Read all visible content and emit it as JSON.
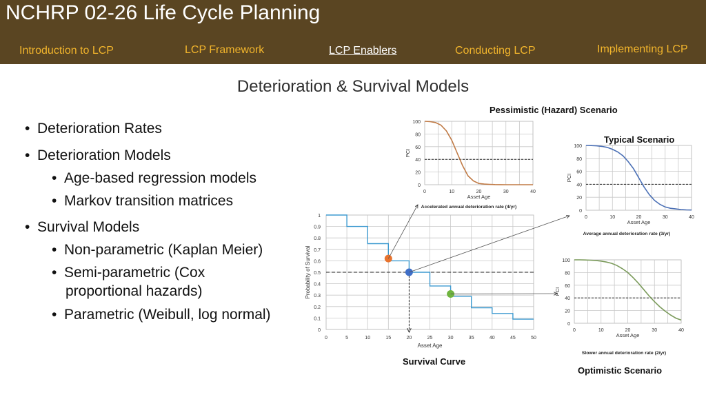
{
  "header": {
    "title": "NCHRP 02-26 Life Cycle Planning",
    "nav": [
      "Introduction to LCP",
      "LCP  Framework",
      "LCP Enablers",
      "Conducting LCP",
      "Implementing LCP"
    ],
    "active_index": 2
  },
  "slide": {
    "title": "Deterioration & Survival Models",
    "bullets": [
      "Deterioration Rates",
      "Deterioration Models",
      "Age-based regression models",
      "Markov transition matrices",
      "Survival Models",
      "Non-parametric (Kaplan Meier)",
      "Semi-parametric (Cox",
      "proportional hazards)",
      "Parametric (Weibull, log normal)"
    ]
  },
  "colors": {
    "header_bg": "#5a4522",
    "nav_text": "#f2b52c",
    "pessimistic_curve": "#c07a45",
    "typical_curve": "#4a6fb5",
    "optimistic_curve": "#7a9a5a",
    "survival_line": "#3d9ad0",
    "point_orange": "#e8732e",
    "point_blue": "#3f6fc8",
    "point_green": "#6fb43f"
  },
  "chart_data": [
    {
      "type": "line",
      "title": "Survival Curve",
      "xlabel": "Asset Age",
      "ylabel": "Probability of Survival",
      "xlim": [
        0,
        50
      ],
      "ylim": [
        0,
        1
      ],
      "x_ticks": [
        0,
        5,
        10,
        15,
        20,
        25,
        30,
        35,
        40,
        45,
        50
      ],
      "y_ticks": [
        0,
        0.1,
        0.2,
        0.3,
        0.4,
        0.5,
        0.6,
        0.7,
        0.8,
        0.9,
        1
      ],
      "x_tick_labels": [
        "0",
        "5",
        "10",
        "15",
        "20",
        "25",
        "30",
        "35",
        "40",
        "45",
        "50"
      ],
      "y_tick_labels": [
        "0",
        "0.1",
        "0.2",
        "0.3",
        "0.4",
        "0.5",
        "0.6",
        "0.7",
        "0.8",
        "0.9",
        "1"
      ],
      "step_x": [
        0,
        5,
        10,
        15,
        20,
        25,
        30,
        35,
        40,
        45,
        50
      ],
      "step_y": [
        1,
        0.9,
        0.75,
        0.6,
        0.5,
        0.38,
        0.29,
        0.19,
        0.14,
        0.09,
        0.09
      ],
      "points": [
        {
          "x": 15,
          "y": 0.62,
          "color": "orange"
        },
        {
          "x": 20,
          "y": 0.5,
          "color": "blue"
        },
        {
          "x": 30,
          "y": 0.31,
          "color": "green"
        }
      ],
      "reference_line_y": 0.5,
      "reference_line_x": 20,
      "grid": true
    },
    {
      "type": "line",
      "title": "Pessimistic (Hazard) Scenario",
      "caption": "Accelerated annual deterioration rate (4/yr)",
      "xlabel": "Asset Age",
      "ylabel": "PCI",
      "xlim": [
        0,
        40
      ],
      "ylim": [
        0,
        100
      ],
      "x_ticks": [
        0,
        10,
        20,
        30,
        40
      ],
      "y_ticks": [
        0,
        20,
        40,
        60,
        80,
        100
      ],
      "x": [
        0,
        2,
        4,
        6,
        8,
        10,
        12,
        14,
        16,
        18,
        20,
        22,
        24,
        26,
        28,
        30,
        32,
        34,
        36,
        38,
        40
      ],
      "y": [
        100,
        99.5,
        98,
        94,
        85,
        70,
        50,
        30,
        14,
        6,
        2,
        1,
        0.5,
        0.2,
        0.1,
        0,
        0,
        0,
        0,
        0,
        0
      ],
      "reference_line_y": 40,
      "grid": true
    },
    {
      "type": "line",
      "title": "Typical Scenario",
      "caption": "Average annual deterioration rate (3/yr)",
      "xlabel": "Asset Age",
      "ylabel": "PCI",
      "xlim": [
        0,
        40
      ],
      "ylim": [
        0,
        100
      ],
      "x_ticks": [
        0,
        10,
        20,
        30,
        40
      ],
      "y_ticks": [
        0,
        20,
        40,
        60,
        80,
        100
      ],
      "x": [
        0,
        2,
        4,
        6,
        8,
        10,
        12,
        14,
        16,
        18,
        20,
        22,
        24,
        26,
        28,
        30,
        32,
        34,
        36,
        38,
        40
      ],
      "y": [
        100,
        99.8,
        99.4,
        98.5,
        97,
        94,
        90,
        84,
        75,
        64,
        50,
        36,
        24,
        15,
        9,
        5,
        3,
        2,
        1,
        0.5,
        0.3
      ],
      "reference_line_y": 40,
      "grid": true
    },
    {
      "type": "line",
      "title": "Optimistic Scenario",
      "caption": "Slower annual deterioration rate (2/yr)",
      "xlabel": "Asset Age",
      "ylabel": "PCI",
      "xlim": [
        0,
        40
      ],
      "ylim": [
        0,
        100
      ],
      "x_ticks": [
        0,
        10,
        20,
        30,
        40
      ],
      "y_ticks": [
        0,
        20,
        40,
        60,
        80,
        100
      ],
      "x": [
        0,
        2,
        4,
        6,
        8,
        10,
        12,
        14,
        16,
        18,
        20,
        22,
        24,
        26,
        28,
        30,
        32,
        34,
        36,
        38,
        40
      ],
      "y": [
        100,
        100,
        99.8,
        99.5,
        99,
        98,
        96.5,
        94.5,
        91,
        86,
        80,
        72,
        63,
        53,
        43,
        34,
        26,
        19,
        13,
        8,
        5
      ],
      "reference_line_y": 40,
      "grid": true
    }
  ]
}
